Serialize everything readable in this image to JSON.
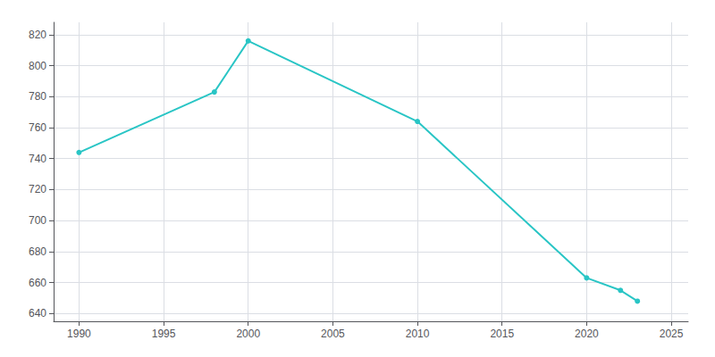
{
  "chart_data": {
    "type": "line",
    "x": [
      1990,
      1998,
      2000,
      2010,
      2020,
      2022,
      2023
    ],
    "values": [
      744,
      783,
      816,
      764,
      663,
      655,
      648
    ],
    "color": "#29C5C5",
    "marker": "circle",
    "xlim": [
      1988.5,
      2026
    ],
    "xticks": [
      1990,
      1995,
      2000,
      2005,
      2010,
      2015,
      2020,
      2025
    ],
    "ylim": [
      635,
      828
    ],
    "yticks": [
      640,
      660,
      680,
      700,
      720,
      740,
      760,
      780,
      800,
      820
    ],
    "grid": true
  }
}
